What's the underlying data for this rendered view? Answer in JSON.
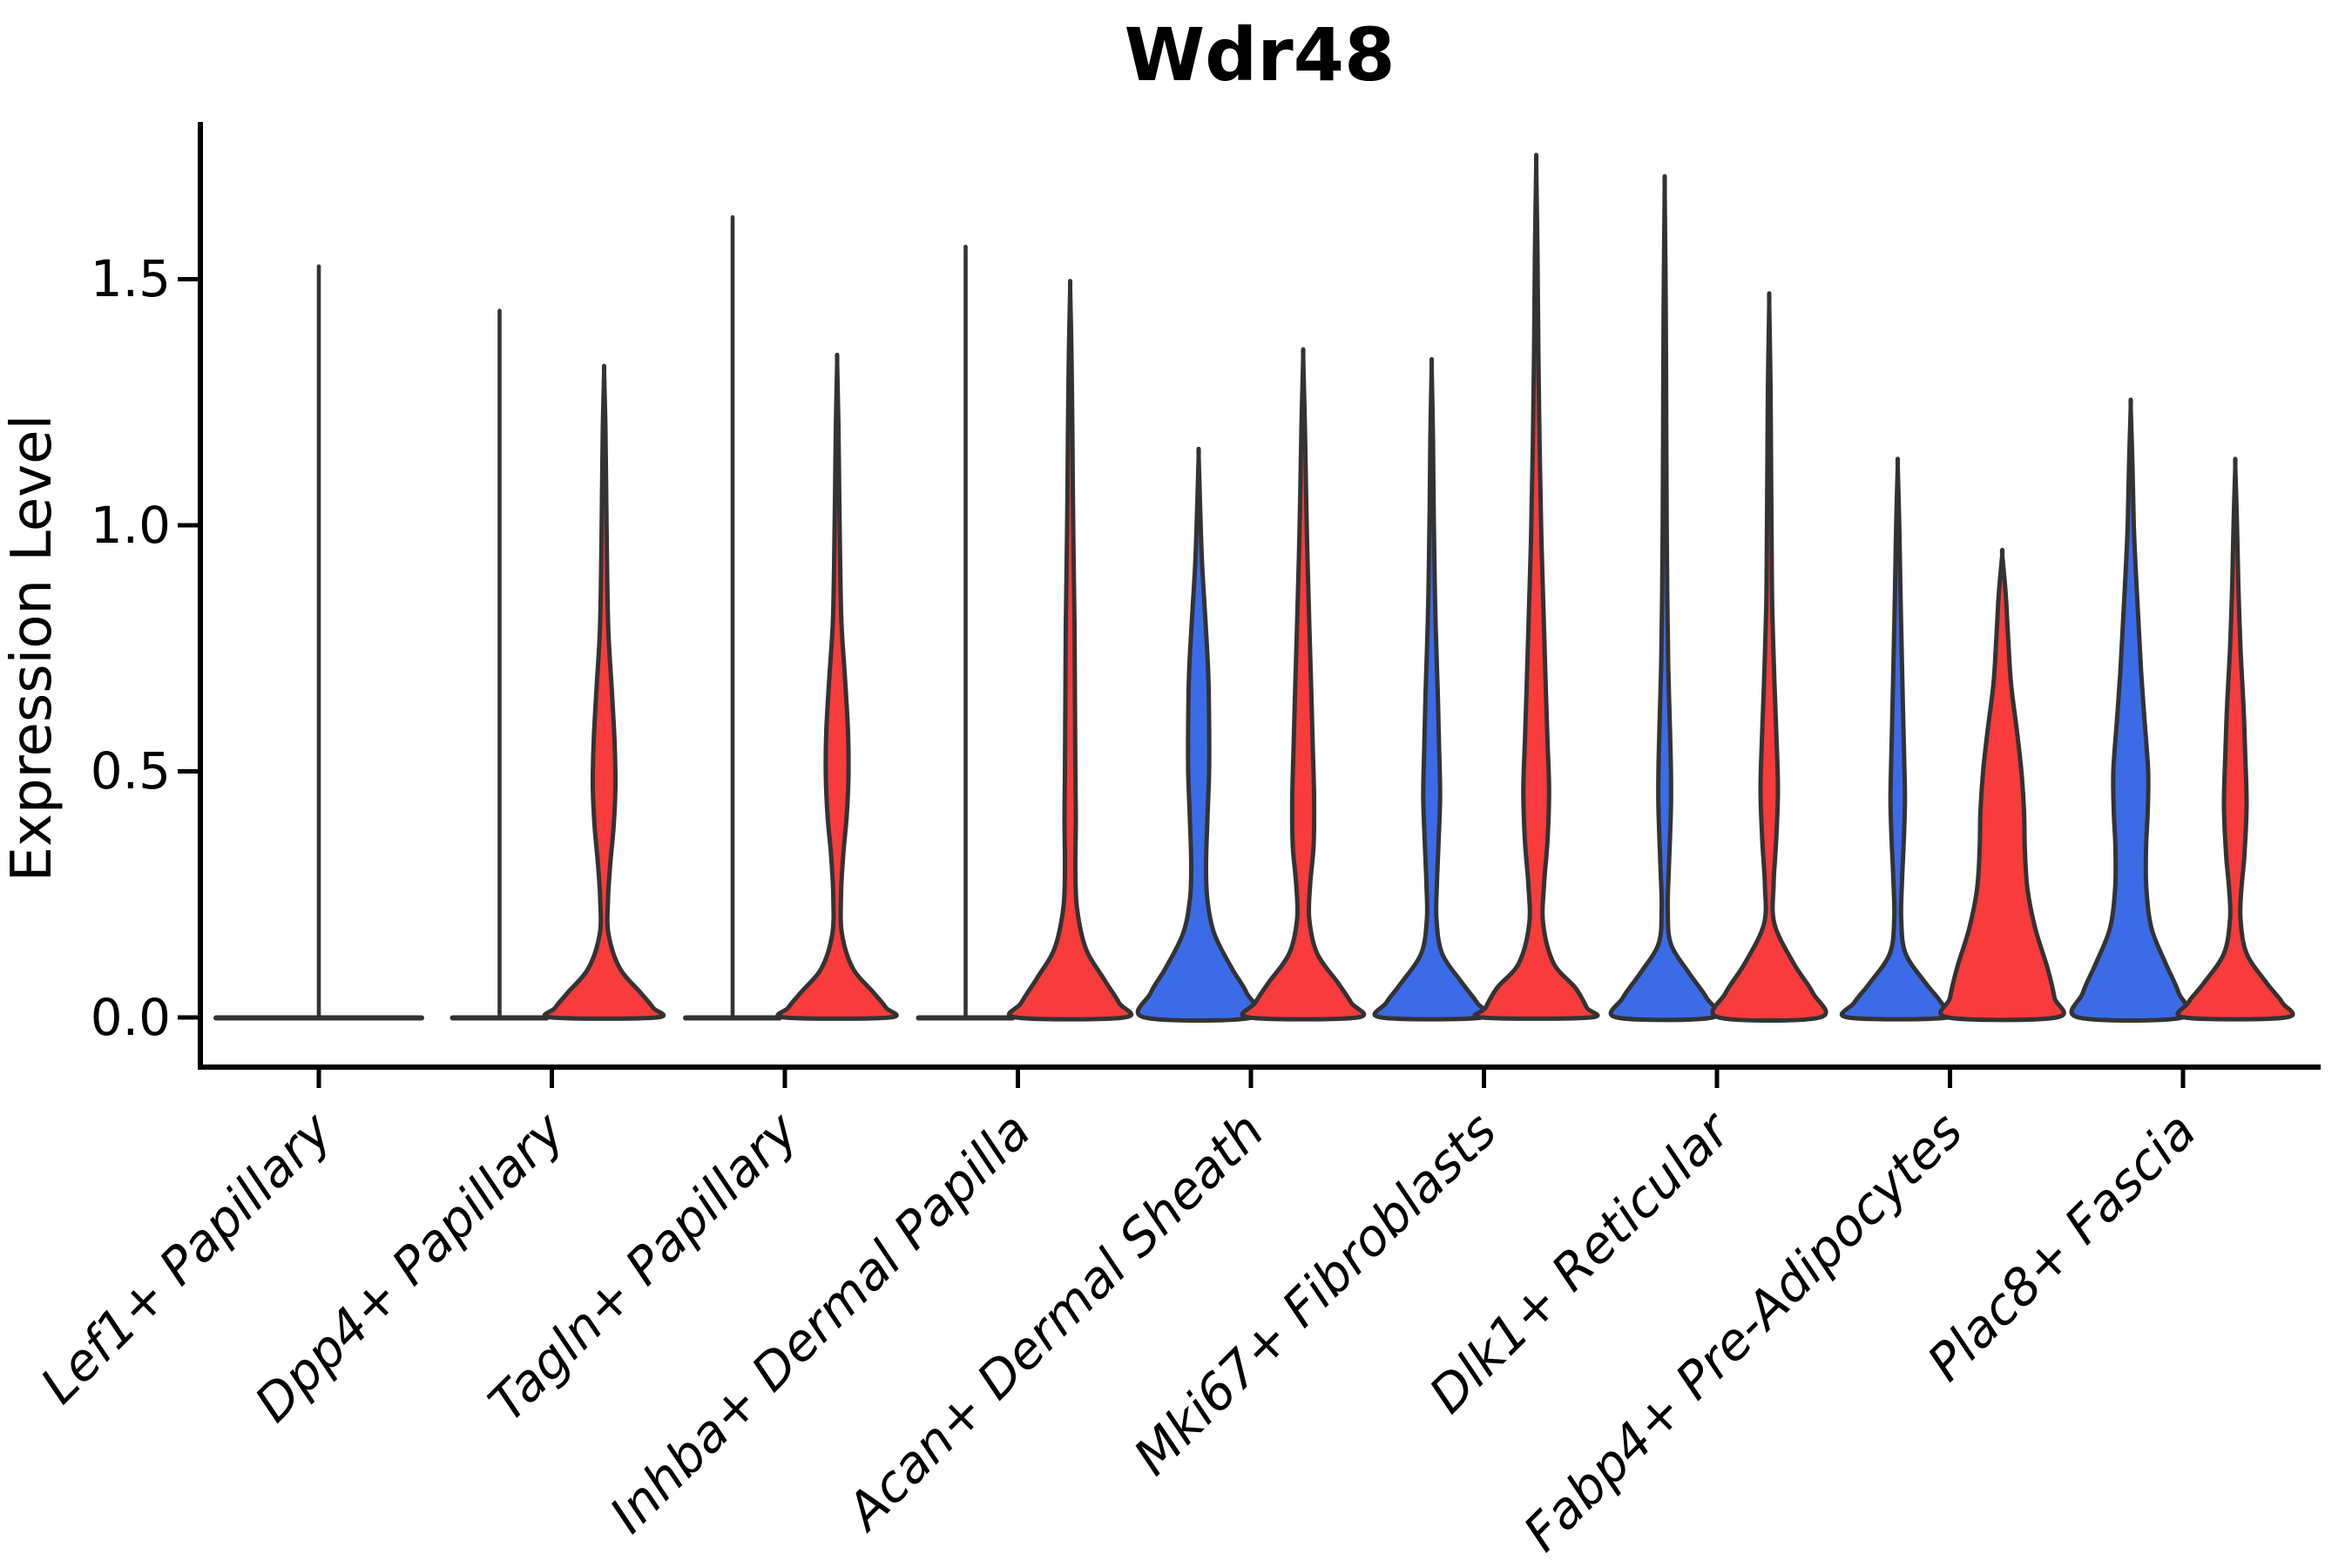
{
  "chart_data": {
    "type": "violin",
    "title": "Wdr48",
    "xlabel": "",
    "ylabel": "Expression Level",
    "y_ticks": [
      "0.0",
      "0.5",
      "1.0",
      "1.5"
    ],
    "y_tick_values": [
      0.0,
      0.5,
      1.0,
      1.5
    ],
    "ylim": [
      -0.1,
      1.81
    ],
    "grid": false,
    "legend": "none",
    "split_groups": [
      "condition-blue",
      "condition-red"
    ],
    "colors": {
      "blue": "#3C6BE8",
      "red": "#F83B3B",
      "outline": "#333333",
      "axis": "#000000"
    },
    "categories": [
      "Lef1+ Papillary",
      "Dpp4+ Papillary",
      "Tagln+ Papillary",
      "Inhba+ Dermal Papilla",
      "Acan+ Dermal Sheath",
      "Mki67+ Fibroblasts",
      "Dlk1+ Reticular",
      "Fabp4+ Pre-Adipocytes",
      "Plac8+ Fascia"
    ],
    "violins": [
      {
        "category": "Lef1+ Papillary",
        "side": "single",
        "color": "outline",
        "kind": "spike",
        "max_expression": 1.53,
        "flat_halfwidth": 121,
        "note": "nearly all zeros; single thin density spike at category center"
      },
      {
        "category": "Dpp4+ Papillary",
        "side": "left",
        "color": "blue",
        "kind": "spike",
        "max_expression": 1.44,
        "flat_halfwidth": 57
      },
      {
        "category": "Dpp4+ Papillary",
        "side": "right",
        "color": "red",
        "kind": "shape",
        "max_expression": 1.31,
        "profile": [
          [
            1.31,
            0
          ],
          [
            1.2,
            1.5
          ],
          [
            1.05,
            2.5
          ],
          [
            0.9,
            3.5
          ],
          [
            0.78,
            5
          ],
          [
            0.66,
            9
          ],
          [
            0.56,
            12
          ],
          [
            0.47,
            13
          ],
          [
            0.39,
            11
          ],
          [
            0.31,
            7
          ],
          [
            0.24,
            4.5
          ],
          [
            0.17,
            5
          ],
          [
            0.1,
            18
          ],
          [
            0.05,
            42
          ],
          [
            0.02,
            56
          ],
          [
            0,
            60
          ]
        ]
      },
      {
        "category": "Tagln+ Papillary",
        "side": "left",
        "color": "blue",
        "kind": "spike",
        "max_expression": 1.63,
        "flat_halfwidth": 57
      },
      {
        "category": "Tagln+ Papillary",
        "side": "right",
        "color": "red",
        "kind": "shape",
        "max_expression": 1.33,
        "profile": [
          [
            1.33,
            0
          ],
          [
            1.2,
            1.5
          ],
          [
            1.05,
            2.5
          ],
          [
            0.92,
            3.5
          ],
          [
            0.8,
            5
          ],
          [
            0.69,
            9
          ],
          [
            0.58,
            12.5
          ],
          [
            0.49,
            13
          ],
          [
            0.41,
            11
          ],
          [
            0.33,
            7
          ],
          [
            0.25,
            4.5
          ],
          [
            0.17,
            5.5
          ],
          [
            0.1,
            18
          ],
          [
            0.05,
            42
          ],
          [
            0.02,
            56
          ],
          [
            0,
            60
          ]
        ]
      },
      {
        "category": "Inhba+ Dermal Papilla",
        "side": "left",
        "color": "blue",
        "kind": "spike",
        "max_expression": 1.57,
        "flat_halfwidth": 57
      },
      {
        "category": "Inhba+ Dermal Papilla",
        "side": "right",
        "color": "red",
        "kind": "shape",
        "max_expression": 1.48,
        "profile": [
          [
            1.48,
            0
          ],
          [
            1.35,
            1.5
          ],
          [
            1.2,
            2.5
          ],
          [
            1.05,
            3.2
          ],
          [
            0.93,
            4
          ],
          [
            0.8,
            5
          ],
          [
            0.65,
            5.5
          ],
          [
            0.5,
            6
          ],
          [
            0.4,
            6.5
          ],
          [
            0.3,
            6
          ],
          [
            0.22,
            8
          ],
          [
            0.14,
            18
          ],
          [
            0.08,
            38
          ],
          [
            0.03,
            56
          ],
          [
            0,
            62
          ]
        ]
      },
      {
        "category": "Acan+ Dermal Sheath",
        "side": "left",
        "color": "blue",
        "kind": "shape",
        "max_expression": 1.14,
        "profile": [
          [
            1.14,
            0
          ],
          [
            1.02,
            2
          ],
          [
            0.92,
            4
          ],
          [
            0.8,
            8
          ],
          [
            0.7,
            11
          ],
          [
            0.6,
            12
          ],
          [
            0.5,
            12
          ],
          [
            0.4,
            10
          ],
          [
            0.31,
            8.5
          ],
          [
            0.24,
            10
          ],
          [
            0.17,
            18
          ],
          [
            0.1,
            38
          ],
          [
            0.05,
            55
          ],
          [
            0,
            62
          ]
        ]
      },
      {
        "category": "Acan+ Dermal Sheath",
        "side": "right",
        "color": "red",
        "kind": "shape",
        "max_expression": 1.34,
        "profile": [
          [
            1.34,
            0
          ],
          [
            1.2,
            2
          ],
          [
            1.05,
            3.5
          ],
          [
            0.93,
            5
          ],
          [
            0.8,
            7
          ],
          [
            0.65,
            9.5
          ],
          [
            0.55,
            11
          ],
          [
            0.45,
            12.5
          ],
          [
            0.35,
            12
          ],
          [
            0.27,
            8
          ],
          [
            0.2,
            7
          ],
          [
            0.13,
            16
          ],
          [
            0.07,
            40
          ],
          [
            0.03,
            55
          ],
          [
            0,
            62
          ]
        ]
      },
      {
        "category": "Mki67+ Fibroblasts",
        "side": "left",
        "color": "blue",
        "kind": "shape",
        "max_expression": 1.32,
        "profile": [
          [
            1.32,
            0
          ],
          [
            1.18,
            1.5
          ],
          [
            1.05,
            2.2
          ],
          [
            0.92,
            3.2
          ],
          [
            0.8,
            4.5
          ],
          [
            0.66,
            7
          ],
          [
            0.55,
            8.5
          ],
          [
            0.45,
            9.7
          ],
          [
            0.36,
            8
          ],
          [
            0.27,
            6
          ],
          [
            0.2,
            5.5
          ],
          [
            0.13,
            12
          ],
          [
            0.07,
            35
          ],
          [
            0.03,
            52
          ],
          [
            0,
            58
          ]
        ]
      },
      {
        "category": "Mki67+ Fibroblasts",
        "side": "right",
        "color": "red",
        "kind": "shape",
        "max_expression": 1.73,
        "profile": [
          [
            1.73,
            0
          ],
          [
            1.55,
            1.5
          ],
          [
            1.35,
            2.5
          ],
          [
            1.15,
            4
          ],
          [
            0.97,
            6
          ],
          [
            0.82,
            8.5
          ],
          [
            0.67,
            11
          ],
          [
            0.56,
            13
          ],
          [
            0.46,
            14.8
          ],
          [
            0.36,
            13
          ],
          [
            0.27,
            9
          ],
          [
            0.19,
            8
          ],
          [
            0.11,
            20
          ],
          [
            0.06,
            45
          ],
          [
            0.02,
            58
          ],
          [
            0,
            62
          ]
        ]
      },
      {
        "category": "Dlk1+ Reticular",
        "side": "left",
        "color": "blue",
        "kind": "shape",
        "max_expression": 1.68,
        "profile": [
          [
            1.68,
            0
          ],
          [
            1.45,
            1.2
          ],
          [
            1.2,
            1.8
          ],
          [
            1.0,
            2.3
          ],
          [
            0.85,
            3
          ],
          [
            0.72,
            4
          ],
          [
            0.62,
            5.5
          ],
          [
            0.52,
            7
          ],
          [
            0.44,
            7.3
          ],
          [
            0.36,
            6
          ],
          [
            0.29,
            4.5
          ],
          [
            0.22,
            3.5
          ],
          [
            0.15,
            7
          ],
          [
            0.09,
            28
          ],
          [
            0.04,
            48
          ],
          [
            0,
            55
          ]
        ]
      },
      {
        "category": "Dlk1+ Reticular",
        "side": "right",
        "color": "red",
        "kind": "shape",
        "max_expression": 1.45,
        "profile": [
          [
            1.45,
            0
          ],
          [
            1.28,
            1.5
          ],
          [
            1.1,
            2.2
          ],
          [
            0.95,
            2.8
          ],
          [
            0.83,
            3.5
          ],
          [
            0.68,
            6
          ],
          [
            0.56,
            8.5
          ],
          [
            0.46,
            10
          ],
          [
            0.36,
            8
          ],
          [
            0.27,
            5
          ],
          [
            0.19,
            6
          ],
          [
            0.11,
            28
          ],
          [
            0.05,
            50
          ],
          [
            0,
            58
          ]
        ]
      },
      {
        "category": "Fabp4+ Pre-Adipocytes",
        "side": "left",
        "color": "blue",
        "kind": "shape",
        "max_expression": 1.12,
        "profile": [
          [
            1.12,
            0
          ],
          [
            1.0,
            1.8
          ],
          [
            0.88,
            3
          ],
          [
            0.75,
            4.5
          ],
          [
            0.63,
            6
          ],
          [
            0.52,
            7.5
          ],
          [
            0.44,
            8.3
          ],
          [
            0.36,
            7
          ],
          [
            0.28,
            5
          ],
          [
            0.2,
            4
          ],
          [
            0.13,
            9
          ],
          [
            0.07,
            32
          ],
          [
            0.03,
            50
          ],
          [
            0,
            57
          ]
        ]
      },
      {
        "category": "Fabp4+ Pre-Adipocytes",
        "side": "right",
        "color": "red",
        "kind": "shape",
        "max_expression": 0.94,
        "profile": [
          [
            0.94,
            0
          ],
          [
            0.86,
            4
          ],
          [
            0.78,
            6.5
          ],
          [
            0.68,
            10
          ],
          [
            0.58,
            17
          ],
          [
            0.5,
            22
          ],
          [
            0.42,
            25
          ],
          [
            0.34,
            26
          ],
          [
            0.26,
            29
          ],
          [
            0.18,
            38
          ],
          [
            0.1,
            52
          ],
          [
            0.04,
            60
          ],
          [
            0,
            62
          ]
        ]
      },
      {
        "category": "Plac8+ Fascia",
        "side": "left",
        "color": "blue",
        "kind": "shape",
        "max_expression": 1.24,
        "profile": [
          [
            1.24,
            0
          ],
          [
            1.12,
            2
          ],
          [
            1.0,
            3.5
          ],
          [
            0.9,
            6
          ],
          [
            0.8,
            9
          ],
          [
            0.7,
            12
          ],
          [
            0.6,
            16
          ],
          [
            0.5,
            20
          ],
          [
            0.42,
            19.5
          ],
          [
            0.34,
            17.5
          ],
          [
            0.26,
            18
          ],
          [
            0.18,
            24
          ],
          [
            0.11,
            40
          ],
          [
            0.05,
            55
          ],
          [
            0,
            60
          ]
        ]
      },
      {
        "category": "Plac8+ Fascia",
        "side": "right",
        "color": "red",
        "kind": "shape",
        "max_expression": 1.12,
        "profile": [
          [
            1.12,
            0
          ],
          [
            1.0,
            2
          ],
          [
            0.88,
            3.5
          ],
          [
            0.75,
            6
          ],
          [
            0.63,
            9.5
          ],
          [
            0.53,
            11.5
          ],
          [
            0.43,
            13
          ],
          [
            0.33,
            10.5
          ],
          [
            0.26,
            7
          ],
          [
            0.2,
            6
          ],
          [
            0.13,
            13
          ],
          [
            0.07,
            36
          ],
          [
            0.03,
            54
          ],
          [
            0,
            58
          ]
        ]
      }
    ]
  }
}
